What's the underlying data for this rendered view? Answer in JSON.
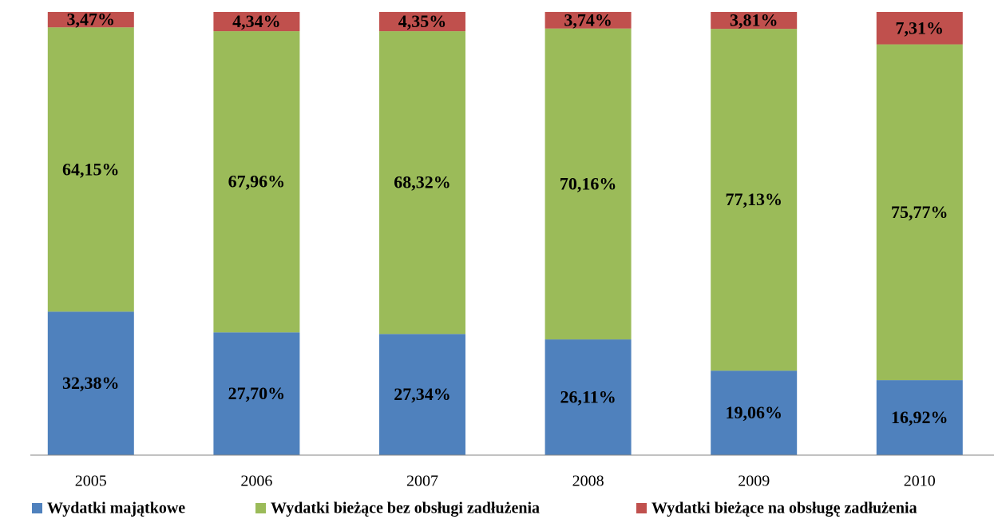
{
  "chart_data": {
    "type": "bar",
    "stacked": true,
    "categories": [
      "2005",
      "2006",
      "2007",
      "2008",
      "2009",
      "2010"
    ],
    "ylim": [
      0,
      100
    ],
    "legend": "bottom",
    "series": [
      {
        "name": "Wydatki majątkowe",
        "color": "#4f81bd",
        "values": [
          32.38,
          27.7,
          27.34,
          26.11,
          19.06,
          16.92
        ],
        "value_labels": [
          "32,38%",
          "27,70%",
          "27,34%",
          "26,11%",
          "19,06%",
          "16,92%"
        ]
      },
      {
        "name": "Wydatki bieżące bez obsługi zadłużenia",
        "color": "#9bbb59",
        "values": [
          64.15,
          67.96,
          68.32,
          70.16,
          77.13,
          75.77
        ],
        "value_labels": [
          "64,15%",
          "67,96%",
          "68,32%",
          "70,16%",
          "77,13%",
          "75,77%"
        ]
      },
      {
        "name": "Wydatki bieżące na obsługę zadłużenia",
        "color": "#c0504d",
        "values": [
          3.47,
          4.34,
          4.35,
          3.74,
          3.81,
          7.31
        ],
        "value_labels": [
          "3,47%",
          "4,34%",
          "4,35%",
          "3,74%",
          "3,81%",
          "7,31%"
        ]
      }
    ]
  }
}
